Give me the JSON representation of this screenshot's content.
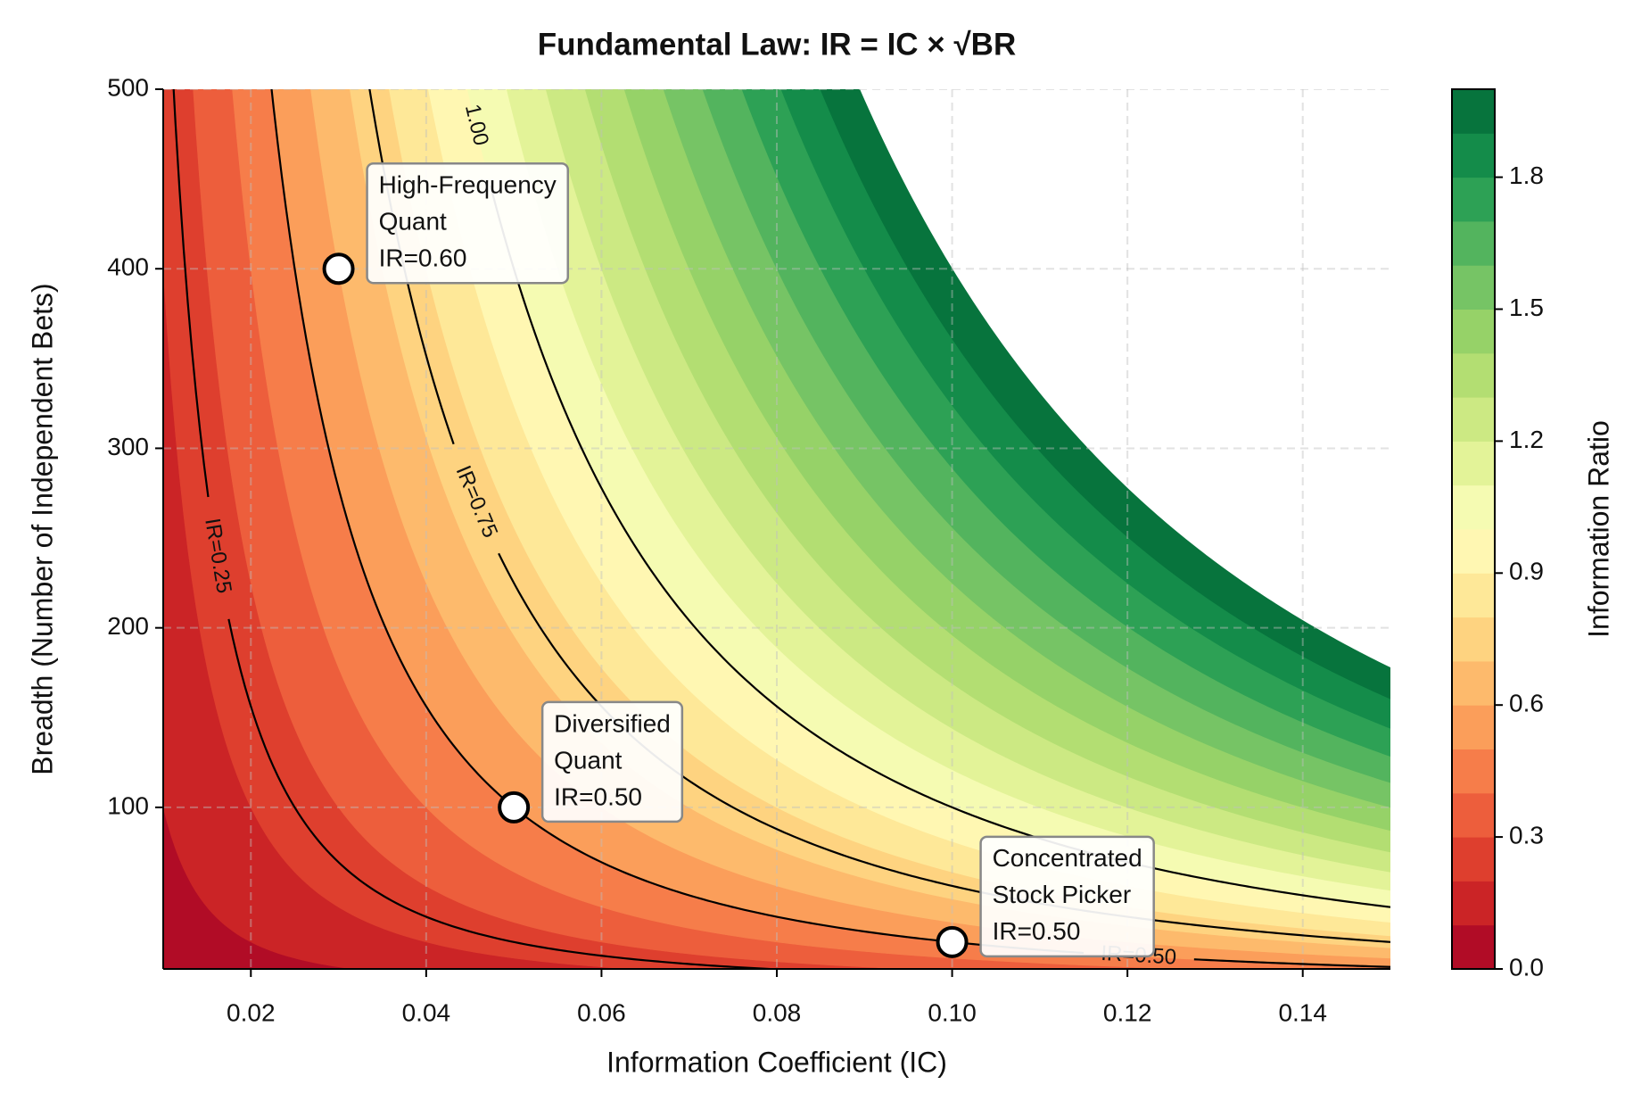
{
  "chart_data": {
    "type": "contour",
    "title": "Fundamental Law: IR = IC × √BR",
    "x_label": "Information Coefficient (IC)",
    "y_label": "Breadth (Number of Independent Bets)",
    "xlim": [
      0.01,
      0.15
    ],
    "ylim": [
      10,
      500
    ],
    "xticks": [
      0.02,
      0.04,
      0.06,
      0.08,
      {
        "value": 0.1,
        "label": "0.10"
      },
      0.12,
      0.14
    ],
    "yticks": [
      100,
      200,
      300,
      400,
      500
    ],
    "grid": true,
    "levels": [
      0,
      0.1,
      0.2,
      0.3,
      0.4,
      0.5,
      0.6,
      0.7,
      0.8,
      0.9,
      1.0,
      1.1,
      1.2,
      1.3,
      1.4,
      1.5,
      1.6,
      1.7,
      1.8,
      1.9,
      2.0
    ],
    "colors": [
      "#b10c26",
      "#cb2426",
      "#de3f2e",
      "#ed5e3c",
      "#f67d4a",
      "#fb9e5a",
      "#fdba6c",
      "#fed380",
      "#fee898",
      "#fff7b2",
      "#f5fbb2",
      "#e3f398",
      "#cce983",
      "#b3de72",
      "#96d268",
      "#76c465",
      "#53b45e",
      "#2da155",
      "#148c4a",
      "#07743d"
    ],
    "colorbar_label": "Information Ratio",
    "colorbar_ticks": [
      {
        "value": 0,
        "label": "0.0"
      },
      0.3,
      0.6,
      0.9,
      1.2,
      1.5,
      1.8
    ],
    "contour_lines": [
      {
        "level": 0.25,
        "label": "IR=0.25"
      },
      {
        "level": 0.5,
        "label": "IR=0.50"
      },
      {
        "level": 0.75,
        "label": "IR=0.75"
      },
      {
        "level": 1,
        "label": "1.00"
      }
    ],
    "points": [
      {
        "x": 0.03,
        "y": 400,
        "label": [
          "High-Frequency",
          "Quant",
          "IR=0.60"
        ]
      },
      {
        "x": 0.05,
        "y": 100,
        "label": [
          "Diversified",
          "Quant",
          "IR=0.50"
        ]
      },
      {
        "x": 0.1,
        "y": 25,
        "label": [
          "Concentrated",
          "Stock Picker",
          "IR=0.50"
        ]
      }
    ]
  }
}
